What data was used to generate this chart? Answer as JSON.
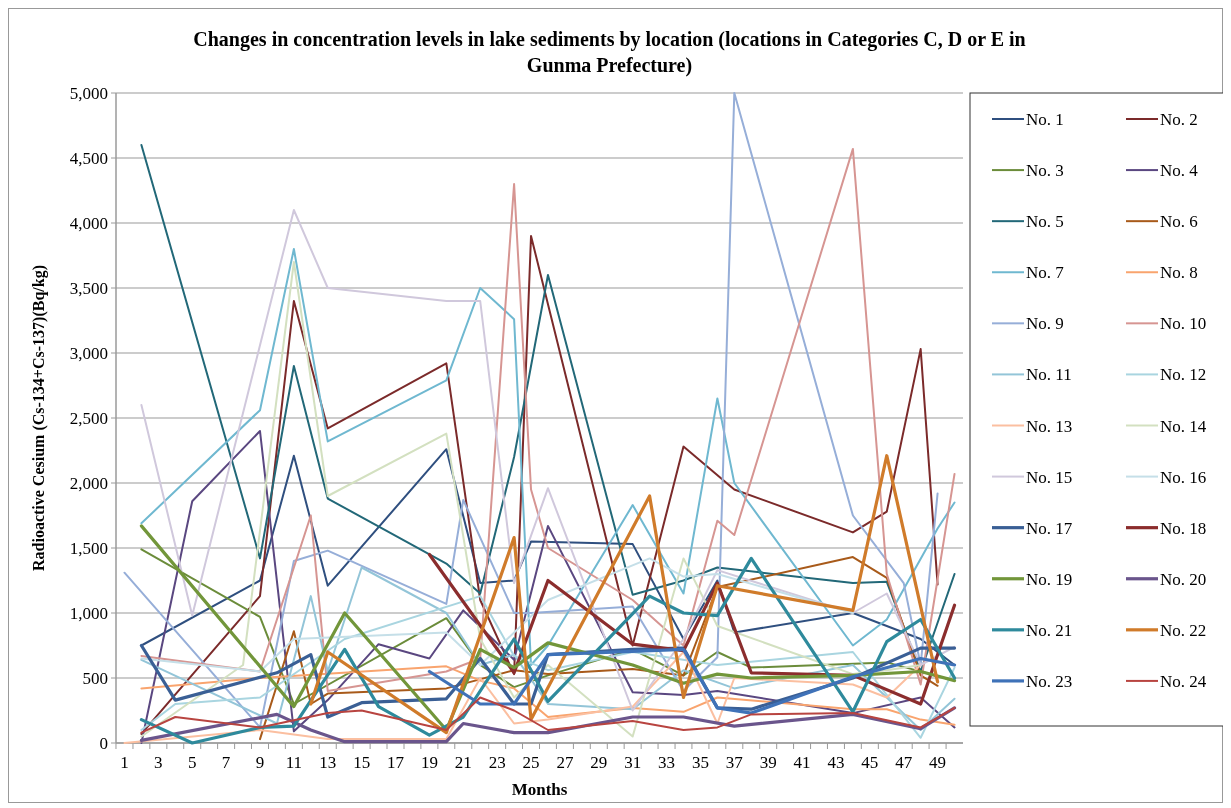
{
  "chart_data": {
    "type": "line",
    "title": "Changes in concentration levels in lake sediments by location (locations in Categories C, D or E in Gunma Prefecture)",
    "xlabel": "Months",
    "ylabel": "Radioactive Cesium (Cs-134+Cs-137)(Bq/kg)",
    "xlim": [
      0.5,
      50.5
    ],
    "xticks": [
      1,
      3,
      5,
      7,
      9,
      11,
      13,
      15,
      17,
      19,
      21,
      23,
      25,
      27,
      29,
      31,
      33,
      35,
      37,
      39,
      41,
      43,
      45,
      47,
      49
    ],
    "ylim": [
      0,
      5000
    ],
    "yticks": [
      0,
      500,
      {
        "value": 1000,
        "label": "1,000"
      },
      {
        "value": 1500,
        "label": "1,500"
      },
      {
        "value": 2000,
        "label": "2,000"
      },
      {
        "value": 2500,
        "label": "2,500"
      },
      {
        "value": 3000,
        "label": "3,000"
      },
      {
        "value": 3500,
        "label": "3,500"
      },
      {
        "value": 4000,
        "label": "4,000"
      },
      {
        "value": 4500,
        "label": "4,500"
      },
      {
        "value": 5000,
        "label": "5,000"
      }
    ],
    "grid": "y",
    "legend": "right",
    "marker": "none",
    "line_style": "solid",
    "series": [
      {
        "name": "No. 1",
        "color": "#2f4f7f",
        "x": [
          2,
          9,
          11,
          13,
          20,
          22,
          24,
          25,
          31,
          34,
          36,
          37,
          44,
          48,
          50
        ],
        "values": [
          750,
          1250,
          2210,
          1210,
          2260,
          1230,
          1250,
          1550,
          1530,
          800,
          1250,
          850,
          1000,
          800,
          600
        ]
      },
      {
        "name": "No. 2",
        "color": "#7b2a2a",
        "x": [
          2,
          9,
          11,
          13,
          20,
          22,
          24,
          25,
          31,
          34,
          37,
          44,
          46,
          48,
          49
        ],
        "values": [
          70,
          1130,
          3400,
          2420,
          2920,
          1100,
          530,
          3900,
          750,
          2280,
          1950,
          1620,
          1780,
          3030,
          1220
        ]
      },
      {
        "name": "No. 3",
        "color": "#6b8c3a",
        "x": [
          2,
          9,
          11,
          20,
          22,
          24,
          26,
          31,
          34,
          36,
          38,
          46,
          50
        ],
        "values": [
          1490,
          970,
          300,
          960,
          600,
          430,
          520,
          720,
          520,
          700,
          580,
          620,
          480
        ]
      },
      {
        "name": "No. 4",
        "color": "#5a4780",
        "x": [
          2,
          5,
          9,
          11,
          13,
          16,
          19,
          21,
          24,
          26,
          31,
          34,
          36,
          44,
          48,
          50
        ],
        "values": [
          0,
          1860,
          2400,
          90,
          330,
          760,
          650,
          1020,
          640,
          1670,
          390,
          370,
          400,
          230,
          350,
          120
        ]
      },
      {
        "name": "No. 5",
        "color": "#226878",
        "x": [
          2,
          9,
          11,
          13,
          20,
          22,
          24,
          26,
          31,
          34,
          36,
          44,
          46,
          48,
          50
        ],
        "values": [
          4600,
          1420,
          2900,
          1880,
          1380,
          1150,
          2200,
          3600,
          1140,
          1250,
          1350,
          1230,
          1240,
          550,
          1300
        ]
      },
      {
        "name": "No. 6",
        "color": "#a85a1a",
        "x": [
          9,
          11,
          12,
          13,
          20,
          24,
          26,
          31,
          34,
          36,
          44,
          46,
          48,
          49
        ],
        "values": [
          30,
          860,
          300,
          380,
          420,
          560,
          530,
          570,
          520,
          1200,
          1430,
          1270,
          520,
          440
        ]
      },
      {
        "name": "No. 7",
        "color": "#6fb8d0",
        "x": [
          2,
          9,
          11,
          13,
          20,
          22,
          24,
          25,
          26,
          31,
          34,
          36,
          37,
          44,
          46,
          49,
          50
        ],
        "values": [
          1690,
          2560,
          3800,
          2320,
          2790,
          3500,
          3260,
          600,
          750,
          1830,
          1150,
          2650,
          2000,
          750,
          950,
          1650,
          1850
        ]
      },
      {
        "name": "No. 8",
        "color": "#f9a46e",
        "x": [
          2,
          9,
          20,
          22,
          24,
          26,
          31,
          34,
          36,
          44,
          46,
          48,
          50
        ],
        "values": [
          420,
          500,
          590,
          480,
          420,
          200,
          270,
          240,
          350,
          260,
          260,
          180,
          140
        ]
      },
      {
        "name": "No. 9",
        "color": "#96aed8",
        "x": [
          1,
          9,
          11,
          13,
          20,
          21,
          24,
          25,
          31,
          34,
          36,
          37,
          44,
          47,
          48,
          49
        ],
        "values": [
          1310,
          120,
          1400,
          1480,
          1070,
          1870,
          1000,
          1000,
          1050,
          400,
          660,
          5000,
          1750,
          1230,
          600,
          1920
        ]
      },
      {
        "name": "No. 10",
        "color": "#d69592",
        "x": [
          2,
          9,
          12,
          13,
          20,
          22,
          24,
          25,
          26,
          31,
          34,
          36,
          37,
          44,
          46,
          48,
          50
        ],
        "values": [
          670,
          550,
          1750,
          400,
          550,
          650,
          4300,
          1950,
          1500,
          1100,
          750,
          1710,
          1600,
          4570,
          1300,
          450,
          2070
        ]
      },
      {
        "name": "No. 11",
        "color": "#93c5d8",
        "x": [
          2,
          10,
          12,
          13,
          15,
          20,
          22,
          24,
          26,
          31,
          34,
          37,
          44,
          48,
          50
        ],
        "values": [
          640,
          150,
          1130,
          550,
          1350,
          1000,
          600,
          680,
          300,
          260,
          560,
          420,
          600,
          100,
          340
        ]
      },
      {
        "name": "No. 12",
        "color": "#a9d5e0",
        "x": [
          2,
          4,
          9,
          14,
          22,
          24,
          26,
          31,
          36,
          44,
          48,
          50
        ],
        "values": [
          100,
          300,
          350,
          800,
          1130,
          670,
          560,
          700,
          600,
          700,
          40,
          580
        ]
      },
      {
        "name": "No. 13",
        "color": "#fbbfa0",
        "x": [
          1,
          9,
          13,
          20,
          22,
          24,
          26,
          31,
          34,
          36,
          37,
          44,
          46,
          48
        ],
        "values": [
          0,
          100,
          30,
          30,
          500,
          150,
          180,
          280,
          700,
          150,
          500,
          450,
          350,
          600
        ]
      },
      {
        "name": "No. 14",
        "color": "#d3e0c0",
        "x": [
          2,
          8,
          11,
          13,
          20,
          22,
          24,
          26,
          31,
          34,
          36,
          44,
          46,
          48
        ],
        "values": [
          50,
          600,
          3700,
          1900,
          2380,
          800,
          350,
          600,
          50,
          1420,
          900,
          530,
          560,
          600
        ]
      },
      {
        "name": "No. 15",
        "color": "#d0c8dc",
        "x": [
          2,
          5,
          11,
          13,
          20,
          22,
          24,
          26,
          31,
          34,
          36,
          44,
          46,
          48,
          50
        ],
        "values": [
          2600,
          980,
          4100,
          3500,
          3400,
          3400,
          1230,
          1960,
          250,
          800,
          1330,
          1000,
          1150,
          600,
          740
        ]
      },
      {
        "name": "No. 16",
        "color": "#c5dfe8",
        "x": [
          2,
          9,
          11,
          20,
          22,
          26,
          32,
          34,
          36,
          44
        ],
        "values": [
          650,
          550,
          800,
          850,
          600,
          1100,
          1420,
          1280,
          1300,
          1000
        ]
      },
      {
        "name": "No. 17",
        "color": "#3a5f95",
        "x": [
          2,
          4,
          10,
          12,
          13,
          15,
          20,
          22,
          24,
          25,
          26,
          31,
          34,
          36,
          38,
          44,
          48,
          50
        ],
        "values": [
          750,
          330,
          540,
          680,
          200,
          310,
          340,
          650,
          300,
          300,
          680,
          720,
          730,
          270,
          260,
          500,
          730,
          730
        ]
      },
      {
        "name": "No. 18",
        "color": "#8b2d2d",
        "x": [
          19,
          24,
          26,
          31,
          34,
          36,
          38,
          44,
          48,
          50
        ],
        "values": [
          1450,
          540,
          1250,
          760,
          710,
          1230,
          540,
          520,
          300,
          1060
        ]
      },
      {
        "name": "No. 19",
        "color": "#72963a",
        "x": [
          2,
          11,
          14,
          20,
          22,
          24,
          26,
          31,
          34,
          36,
          38,
          44,
          48,
          50
        ],
        "values": [
          1670,
          280,
          1000,
          100,
          720,
          580,
          770,
          600,
          460,
          530,
          500,
          520,
          550,
          480
        ]
      },
      {
        "name": "No. 20",
        "color": "#6a558c",
        "x": [
          2,
          10,
          12,
          14,
          20,
          21,
          24,
          26,
          31,
          34,
          37,
          44,
          48,
          50
        ],
        "values": [
          20,
          220,
          100,
          10,
          10,
          150,
          80,
          80,
          200,
          200,
          130,
          220,
          110,
          270
        ]
      },
      {
        "name": "No. 21",
        "color": "#2e8a9c",
        "x": [
          2,
          5,
          9,
          11,
          14,
          16,
          19,
          21,
          24,
          26,
          32,
          34,
          36,
          38,
          44,
          46,
          48,
          50
        ],
        "values": [
          180,
          0,
          120,
          130,
          720,
          280,
          60,
          200,
          800,
          320,
          1130,
          1000,
          980,
          1420,
          240,
          780,
          950,
          500
        ]
      },
      {
        "name": "No. 22",
        "color": "#d07b2a",
        "x": [
          12,
          13,
          20,
          24,
          25,
          32,
          34,
          36,
          44,
          46,
          49
        ],
        "values": [
          300,
          700,
          80,
          1580,
          180,
          1900,
          350,
          1210,
          1020,
          2210,
          470
        ]
      },
      {
        "name": "No. 23",
        "color": "#3f72b8",
        "x": [
          19,
          22,
          24,
          26,
          34,
          36,
          38,
          44,
          48,
          50
        ],
        "values": [
          550,
          300,
          300,
          680,
          720,
          270,
          230,
          510,
          650,
          600
        ]
      },
      {
        "name": "No. 24",
        "color": "#b84440",
        "x": [
          2,
          4,
          9,
          13,
          15,
          20,
          22,
          24,
          26,
          31,
          34,
          36,
          38,
          44,
          48,
          50
        ],
        "values": [
          80,
          200,
          120,
          230,
          250,
          100,
          350,
          250,
          100,
          170,
          100,
          120,
          220,
          230,
          120,
          270
        ]
      }
    ]
  }
}
